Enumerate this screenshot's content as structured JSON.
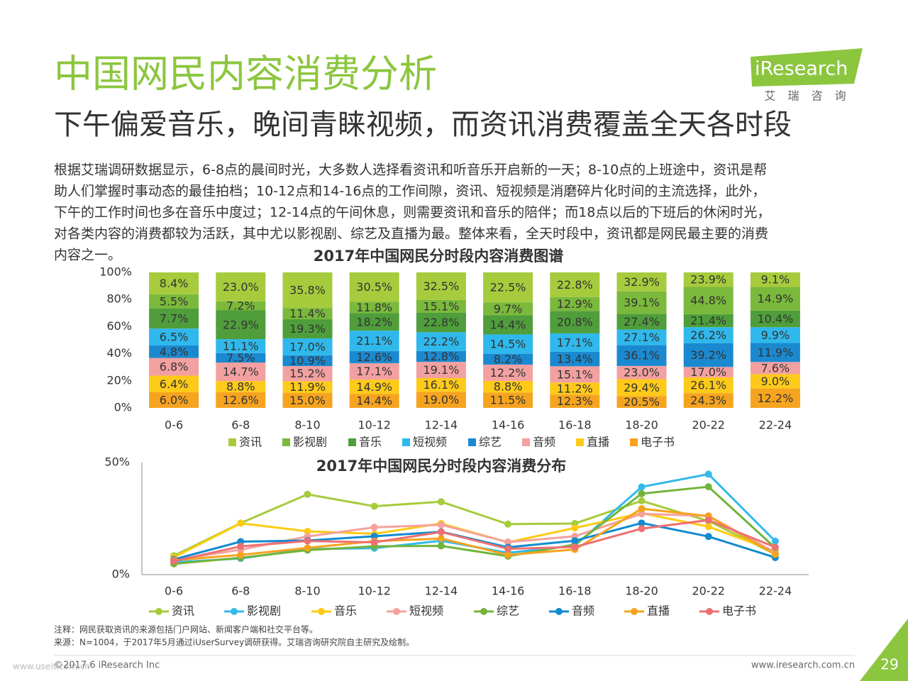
{
  "header": {
    "title": "中国网民内容消费分析",
    "subtitle": "下午偏爱音乐，晚间青睐视频，而资讯消费覆盖全天各时段"
  },
  "logo": {
    "name": "iResearch",
    "tagline": "艾 瑞 咨 询"
  },
  "body": {
    "lines": [
      "根据艾瑞调研数据显示，6-8点的晨间时光，大多数人选择看资讯和听音乐开启新的一天；8-10点的上班途中，资讯是帮",
      "助人们掌握时事动态的最佳拍档；10-12点和14-16点的工作间隙，资讯、短视频是消磨碎片化时间的主流选择，此外，",
      "下午的工作时间也多在音乐中度过；12-14点的午间休息，则需要资讯和音乐的陪伴；而18点以后的下班后的休闲时光，",
      "对各类内容的消费都较为活跃，其中尤以影视剧、综艺及直播为最。整体来看，全天时段中，资讯都是网民最主要的消费",
      "内容之一。"
    ]
  },
  "chart_data": [
    {
      "type": "bar",
      "stacking": "percent",
      "title": "2017年中国网民分时段内容消费图谱",
      "categories": [
        "0-6",
        "6-8",
        "8-10",
        "10-12",
        "12-14",
        "14-16",
        "16-18",
        "18-20",
        "20-22",
        "22-24"
      ],
      "ylim": [
        0,
        100
      ],
      "yticks": [
        {
          "value": 0,
          "label": "0%"
        },
        {
          "value": 20,
          "label": "20%"
        },
        {
          "value": 40,
          "label": "40%"
        },
        {
          "value": 60,
          "label": "60%"
        },
        {
          "value": 80,
          "label": "80%"
        },
        {
          "value": 100,
          "label": "100%"
        }
      ],
      "grid": false,
      "legend": "bottom",
      "series": [
        {
          "name": "资讯",
          "color": "#a6cb3c",
          "values": [
            8.4,
            23.0,
            35.8,
            30.5,
            32.5,
            22.5,
            22.8,
            32.9,
            23.9,
            9.1
          ],
          "value_labels": [
            "8.4%",
            "23.0%",
            "35.8%",
            "30.5%",
            "32.5%",
            "22.5%",
            "22.8%",
            "32.9%",
            "23.9%",
            "9.1%"
          ]
        },
        {
          "name": "影视剧",
          "color": "#7ab93b",
          "values": [
            5.5,
            7.2,
            11.4,
            11.8,
            15.1,
            9.7,
            12.9,
            39.1,
            44.8,
            14.9
          ],
          "value_labels": [
            "5.5%",
            "7.2%",
            "11.4%",
            "11.8%",
            "15.1%",
            "9.7%",
            "12.9%",
            "39.1%",
            "44.8%",
            "14.9%"
          ]
        },
        {
          "name": "音乐",
          "color": "#4f9e3b",
          "values": [
            7.7,
            22.9,
            19.3,
            18.2,
            22.8,
            14.4,
            20.8,
            27.4,
            21.4,
            10.4
          ],
          "value_labels": [
            "7.7%",
            "22.9%",
            "19.3%",
            "18.2%",
            "22.8%",
            "14.4%",
            "20.8%",
            "27.4%",
            "21.4%",
            "10.4%"
          ]
        },
        {
          "name": "短视频",
          "color": "#2fb8ec",
          "values": [
            6.5,
            11.1,
            17.0,
            21.1,
            22.2,
            14.5,
            17.1,
            27.1,
            26.2,
            9.9
          ],
          "value_labels": [
            "6.5%",
            "11.1%",
            "17.0%",
            "21.1%",
            "22.2%",
            "14.5%",
            "17.1%",
            "27.1%",
            "26.2%",
            "9.9%"
          ]
        },
        {
          "name": "综艺",
          "color": "#1b89d0",
          "values": [
            4.8,
            7.5,
            10.9,
            12.6,
            12.8,
            8.2,
            13.4,
            36.1,
            39.2,
            11.9
          ],
          "value_labels": [
            "4.8%",
            "7.5%",
            "10.9%",
            "12.6%",
            "12.8%",
            "8.2%",
            "13.4%",
            "36.1%",
            "39.2%",
            "11.9%"
          ]
        },
        {
          "name": "音频",
          "color": "#f3a0a0",
          "values": [
            6.8,
            14.7,
            15.2,
            17.1,
            19.1,
            12.2,
            15.1,
            23.0,
            17.0,
            7.6
          ],
          "value_labels": [
            "6.8%",
            "14.7%",
            "15.2%",
            "17.1%",
            "19.1%",
            "12.2%",
            "15.1%",
            "23.0%",
            "17.0%",
            "7.6%"
          ]
        },
        {
          "name": "直播",
          "color": "#fdca1a",
          "values": [
            6.4,
            8.8,
            11.9,
            14.9,
            16.1,
            8.8,
            11.2,
            29.4,
            26.1,
            9.0
          ],
          "value_labels": [
            "6.4%",
            "8.8%",
            "11.9%",
            "14.9%",
            "16.1%",
            "8.8%",
            "11.2%",
            "29.4%",
            "26.1%",
            "9.0%"
          ]
        },
        {
          "name": "电子书",
          "color": "#f6a420",
          "values": [
            6.0,
            12.6,
            15.0,
            14.4,
            19.0,
            11.5,
            12.3,
            20.5,
            24.3,
            12.2
          ],
          "value_labels": [
            "6.0%",
            "12.6%",
            "15.0%",
            "14.4%",
            "19.0%",
            "11.5%",
            "12.3%",
            "20.5%",
            "24.3%",
            "12.2%"
          ]
        }
      ]
    },
    {
      "type": "line",
      "title": "2017年中国网民分时段内容消费分布",
      "categories": [
        "0-6",
        "6-8",
        "8-10",
        "10-12",
        "12-14",
        "14-16",
        "16-18",
        "18-20",
        "20-22",
        "22-24"
      ],
      "ylim": [
        0,
        50
      ],
      "yticks": [
        {
          "value": 0,
          "label": "0%"
        },
        {
          "value": 50,
          "label": "50%"
        }
      ],
      "grid": false,
      "legend": "bottom",
      "series": [
        {
          "name": "资讯",
          "color": "#a6cb3c",
          "values": [
            8.4,
            23.0,
            35.8,
            30.5,
            32.5,
            22.5,
            22.8,
            32.9,
            23.9,
            9.1
          ]
        },
        {
          "name": "影视剧",
          "color": "#34b9eb",
          "values": [
            5.5,
            7.2,
            11.4,
            11.8,
            15.1,
            9.7,
            12.9,
            39.1,
            44.8,
            14.9
          ]
        },
        {
          "name": "音乐",
          "color": "#fdcb12",
          "values": [
            7.7,
            22.9,
            19.3,
            18.2,
            22.8,
            14.4,
            20.8,
            27.4,
            21.4,
            10.4
          ]
        },
        {
          "name": "短视频",
          "color": "#f4a29c",
          "values": [
            6.5,
            11.1,
            17.0,
            21.1,
            22.2,
            14.5,
            17.1,
            27.1,
            26.2,
            9.9
          ]
        },
        {
          "name": "综艺",
          "color": "#72b43b",
          "values": [
            4.8,
            7.5,
            10.9,
            12.6,
            12.8,
            8.2,
            13.4,
            36.1,
            39.2,
            11.9
          ]
        },
        {
          "name": "音频",
          "color": "#108bd0",
          "values": [
            6.8,
            14.7,
            15.2,
            17.1,
            19.1,
            12.2,
            15.1,
            23.0,
            17.0,
            7.6
          ]
        },
        {
          "name": "直播",
          "color": "#f5a31f",
          "values": [
            6.4,
            8.8,
            11.9,
            14.9,
            16.1,
            8.8,
            11.2,
            29.4,
            26.1,
            9.0
          ]
        },
        {
          "name": "电子书",
          "color": "#ee7073",
          "values": [
            6.0,
            12.6,
            15.0,
            14.4,
            19.0,
            11.5,
            12.3,
            20.5,
            24.3,
            12.2
          ]
        }
      ]
    }
  ],
  "footnotes": [
    "注释：网民获取资讯的来源包括门户网站、新闻客户端和社交平台等。",
    "来源：N=1004，于2017年5月通过iUserSurvey调研获得。艾瑞咨询研究院自主研究及绘制。"
  ],
  "copyright": "©2017.6 iResearch Inc",
  "website": "www.iresearch.com.cn",
  "page_number": "29",
  "watermark": "www.useit.com.cn"
}
